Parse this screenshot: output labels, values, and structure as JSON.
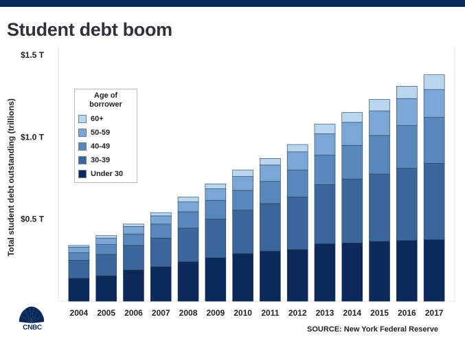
{
  "title": "Student debt boom",
  "source": "SOURCE: New York Federal Reserve",
  "brand": "CNBC",
  "colors": {
    "top_bar": "#0b2a5b",
    "series": [
      "#0b2a5b",
      "#3b669b",
      "#5887bb",
      "#7aa7d5",
      "#b9d6ef"
    ]
  },
  "chart_data": {
    "type": "bar",
    "stacked": true,
    "title": "Student debt boom",
    "xlabel": "",
    "ylabel": "Total student debt outstanding (trillions)",
    "ylim": [
      0,
      1.5
    ],
    "yticks": [
      0.5,
      1.0,
      1.5
    ],
    "ytick_labels": [
      "$0.5 T",
      "$1.0 T",
      "$1.5 T"
    ],
    "grid": false,
    "legend": {
      "title": "Age of\nborrower",
      "placement": "left",
      "order": [
        "60+",
        "50-59",
        "40-49",
        "30-39",
        "Under 30"
      ]
    },
    "categories": [
      "2004",
      "2005",
      "2006",
      "2007",
      "2008",
      "2009",
      "2010",
      "2011",
      "2012",
      "2013",
      "2014",
      "2015",
      "2016",
      "2017"
    ],
    "series": [
      {
        "name": "Under 30",
        "values": [
          0.14,
          0.155,
          0.19,
          0.21,
          0.24,
          0.265,
          0.29,
          0.305,
          0.315,
          0.35,
          0.355,
          0.365,
          0.37,
          0.375
        ]
      },
      {
        "name": "30-39",
        "values": [
          0.11,
          0.13,
          0.15,
          0.175,
          0.205,
          0.235,
          0.265,
          0.29,
          0.32,
          0.36,
          0.39,
          0.41,
          0.44,
          0.465
        ]
      },
      {
        "name": "40-49",
        "values": [
          0.045,
          0.06,
          0.07,
          0.085,
          0.1,
          0.115,
          0.12,
          0.135,
          0.165,
          0.18,
          0.205,
          0.235,
          0.26,
          0.28
        ]
      },
      {
        "name": "50-59",
        "values": [
          0.035,
          0.04,
          0.045,
          0.05,
          0.06,
          0.07,
          0.085,
          0.1,
          0.11,
          0.13,
          0.14,
          0.15,
          0.165,
          0.17
        ]
      },
      {
        "name": "60+",
        "values": [
          0.01,
          0.015,
          0.015,
          0.02,
          0.03,
          0.03,
          0.04,
          0.04,
          0.045,
          0.06,
          0.06,
          0.07,
          0.075,
          0.09
        ]
      }
    ]
  }
}
